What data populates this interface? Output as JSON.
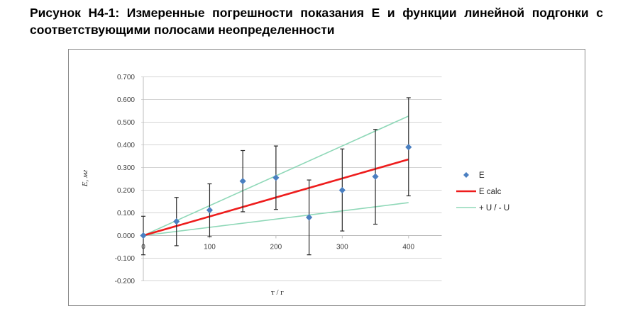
{
  "caption": "Рисунок H4-1: Измеренные погрешности показания E и функции линейной подгонки с соответствующими полосами неопределенности",
  "chart_data": {
    "type": "scatter",
    "title": "",
    "xlabel": "т / г",
    "ylabel": "E, мг",
    "xlim": [
      0,
      450
    ],
    "ylim": [
      -0.2,
      0.7
    ],
    "x_ticks": [
      "0",
      "100",
      "200",
      "300",
      "400"
    ],
    "y_ticks": [
      "-0.200",
      "-0.100",
      "0.000",
      "0.100",
      "0.200",
      "0.300",
      "0.400",
      "0.500",
      "0.600",
      "0.700"
    ],
    "grid": "horizontal",
    "legend_position": "right",
    "series": [
      {
        "name": "E",
        "kind": "points-with-errorbars",
        "color": "#4a7fc1",
        "x": [
          0,
          50,
          100,
          150,
          200,
          250,
          300,
          350,
          400
        ],
        "y": [
          0.0,
          0.062,
          0.112,
          0.24,
          0.255,
          0.08,
          0.2,
          0.26,
          0.39
        ],
        "y_low": [
          -0.085,
          -0.045,
          -0.005,
          0.105,
          0.115,
          -0.085,
          0.02,
          0.05,
          0.175
        ],
        "y_high": [
          0.085,
          0.168,
          0.228,
          0.375,
          0.395,
          0.245,
          0.382,
          0.468,
          0.608
        ]
      },
      {
        "name": "E calc",
        "kind": "line",
        "color": "#ee1c1c",
        "x": [
          0,
          400
        ],
        "y": [
          0.0,
          0.336
        ]
      },
      {
        "name": "+ U / - U",
        "kind": "line-pair",
        "color": "#8fd8b8",
        "x": [
          0,
          400
        ],
        "y_upper": [
          0.0,
          0.527
        ],
        "y_lower": [
          0.0,
          0.145
        ]
      }
    ]
  }
}
